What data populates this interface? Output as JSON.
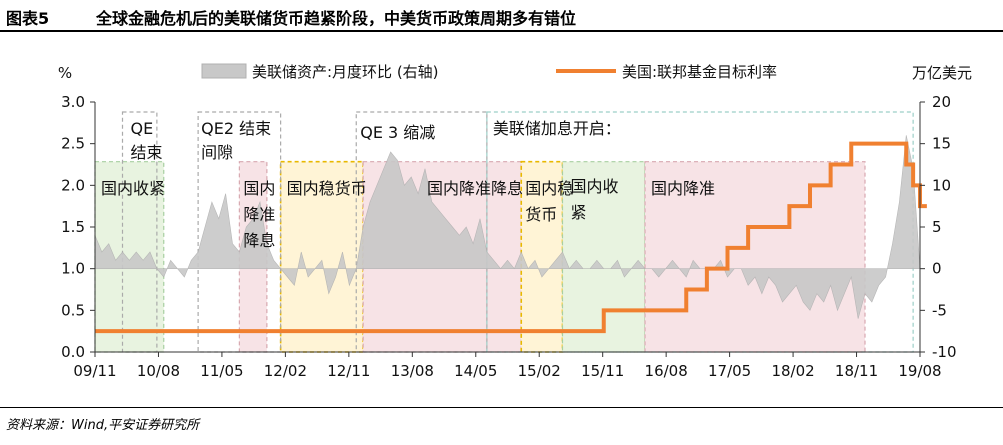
{
  "header": {
    "figure_label": "图表5",
    "title": "全球金融危机后的美联储货币趋紧阶段，中美货币政策周期多有错位"
  },
  "footer": {
    "source": "资料来源：Wind,平安证券研究所"
  },
  "colors": {
    "fed_rate_line": "#F08030",
    "balance_sheet_area": "#C8C8C8",
    "green_box": "#E8F3E0",
    "yellow_box": "#FFF4D6",
    "pink_box": "#F7E3E6",
    "green_border": "#A8CFA0",
    "yellow_border": "#E8B800",
    "pink_border": "#D8A8B0",
    "gray_border": "#AAAAAA",
    "teal_border": "#9CCFC8"
  },
  "chart_data": {
    "type": "line",
    "title": "",
    "left_axis": {
      "unit_label": "%",
      "ylim": [
        0,
        3.0
      ],
      "ticks": [
        "0.0",
        "0.5",
        "1.0",
        "1.5",
        "2.0",
        "2.5",
        "3.0"
      ]
    },
    "right_axis": {
      "unit_label": "万亿美元",
      "ylim": [
        -10,
        20
      ],
      "ticks": [
        "-10",
        "-5",
        "0",
        "5",
        "10",
        "15",
        "20"
      ]
    },
    "x_range": [
      2011.667,
      2020.0
    ],
    "x_ticks": [
      {
        "label": "09/11",
        "x": 2011.667
      },
      {
        "label": "10/08",
        "x": 2012.583
      },
      {
        "label": "11/05",
        "x": 2013.5
      },
      {
        "label": "12/02",
        "x": 2014.417
      },
      {
        "label": "12/11",
        "x": 2015.333
      },
      {
        "label": "13/08",
        "x": 2016.25
      },
      {
        "label": "14/05",
        "x": 2017.167
      },
      {
        "label": "15/02",
        "x": 2018.083
      },
      {
        "label": "15/11",
        "x": 2019.0
      },
      {
        "label": "16/08",
        "x": 2019.917
      }
    ],
    "x_tick_labels": [
      "09/11",
      "10/08",
      "11/05",
      "12/02",
      "12/11",
      "13/08",
      "14/05",
      "15/02",
      "15/11",
      "16/08",
      "17/05",
      "18/02",
      "18/11",
      "19/08"
    ],
    "legend": {
      "placement": "top",
      "items": [
        {
          "name": "美联储资产:月度环比 (右轴)",
          "style": "area"
        },
        {
          "name": "美国:联邦基金目标利率",
          "style": "line"
        }
      ]
    },
    "series": [
      {
        "name": "美国:联邦基金目标利率",
        "axis": "left",
        "points": [
          [
            0,
            0.25
          ],
          [
            73,
            0.25
          ],
          [
            74,
            0.5
          ],
          [
            85,
            0.5
          ],
          [
            86,
            0.75
          ],
          [
            88,
            0.75
          ],
          [
            89,
            1.0
          ],
          [
            91,
            1.0
          ],
          [
            92,
            1.25
          ],
          [
            94,
            1.25
          ],
          [
            95,
            1.5
          ],
          [
            100,
            1.5
          ],
          [
            101,
            1.75
          ],
          [
            103,
            1.75
          ],
          [
            104,
            2.0
          ],
          [
            106,
            2.0
          ],
          [
            107,
            2.25
          ],
          [
            109,
            2.25
          ],
          [
            110,
            2.5
          ],
          [
            117,
            2.5
          ],
          [
            118,
            2.25
          ],
          [
            119,
            2.0
          ],
          [
            120,
            1.75
          ],
          [
            121,
            1.75
          ]
        ]
      },
      {
        "name": "美联储资产:月度环比 (右轴)",
        "axis": "right",
        "values": [
          4,
          2,
          3,
          1,
          2,
          1,
          2,
          1,
          2,
          0,
          -1,
          1,
          0,
          -1,
          1,
          2,
          5,
          8,
          6,
          9,
          3,
          2,
          5,
          6,
          8,
          3,
          1,
          0,
          -1,
          -2,
          2,
          -1,
          0,
          1,
          -3,
          -1,
          2,
          -2,
          0,
          5,
          8,
          10,
          12,
          14,
          13,
          10,
          11,
          9,
          12,
          8,
          7,
          6,
          5,
          4,
          5,
          3,
          6,
          2,
          1,
          0,
          1,
          0,
          2,
          0,
          1,
          -1,
          0,
          1,
          2,
          0,
          1,
          0,
          0,
          1,
          0,
          0,
          1,
          -1,
          0,
          1,
          0,
          0,
          -1,
          0,
          1,
          0,
          -1,
          1,
          0,
          0,
          0,
          1,
          -1,
          0,
          0,
          -2,
          -1,
          -3,
          -1,
          -2,
          -4,
          -3,
          -2,
          -4,
          -5,
          -3,
          -4,
          -2,
          -5,
          -3,
          -1,
          -6,
          -3,
          -4,
          -2,
          -1,
          3,
          8,
          16,
          12,
          0
        ]
      }
    ],
    "phase_boxes": [
      {
        "label": "国内收紧",
        "start": 0,
        "end": 10,
        "type": "green"
      },
      {
        "label": "国内降准降息",
        "start": 21,
        "end": 25,
        "type": "pink"
      },
      {
        "label": "国内稳货币",
        "start": 27,
        "end": 39,
        "type": "yellow"
      },
      {
        "label": "国内降准降息",
        "start": 39,
        "end": 62,
        "type": "pink"
      },
      {
        "label": "国内稳货币",
        "start": 62,
        "end": 68,
        "type": "yellow"
      },
      {
        "label": "国内收紧",
        "start": 68,
        "end": 80,
        "type": "green"
      },
      {
        "label": "国内降准",
        "start": 80,
        "end": 112,
        "type": "pink"
      }
    ],
    "fed_phase_boxes": [
      {
        "label": "QE 结束",
        "start": 4,
        "end": 9,
        "type": "gray"
      },
      {
        "label": "QE2 结束 间隙",
        "start": 15,
        "end": 27,
        "type": "gray"
      },
      {
        "label": "QE 3 缩减",
        "start": 38,
        "end": 57,
        "type": "gray"
      },
      {
        "label": "美联储加息开启：",
        "start": 57,
        "end": 119,
        "type": "teal"
      }
    ],
    "annotation_labels": {
      "qe_end": [
        "QE",
        "结束"
      ],
      "qe2_gap": [
        "QE2 结束",
        "间隙"
      ],
      "qe3_taper": [
        "QE 3 缩减"
      ],
      "fed_hike_start": [
        "美联储加息开启："
      ],
      "domestic_tighten_1": [
        "国内收紧"
      ],
      "domestic_cut_1": [
        "国内",
        "降准",
        "降息"
      ],
      "domestic_stable_1": [
        "国内稳货币"
      ],
      "domestic_cut_2": [
        "国内降准降息"
      ],
      "domestic_stable_2": [
        "国内稳",
        "货币"
      ],
      "domestic_tighten_2": [
        "国内收",
        "紧"
      ],
      "domestic_rrr_cut": [
        "国内降准"
      ]
    }
  }
}
